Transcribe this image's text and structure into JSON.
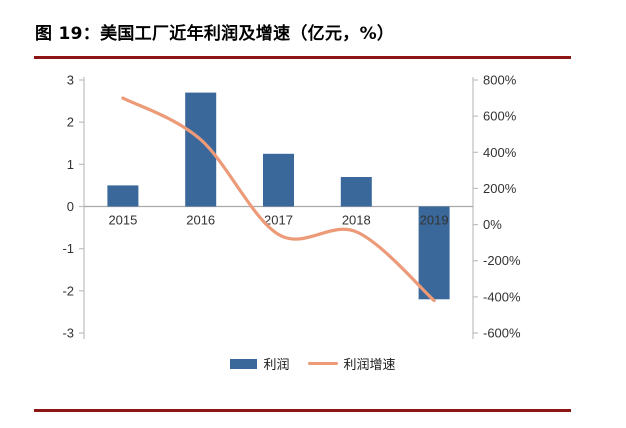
{
  "header": {
    "title": "图 19：美国工厂近年利润及增速（亿元，%）",
    "rule_color": "#8E1515"
  },
  "footer": {
    "rule_color": "#8E1515"
  },
  "chart_data": {
    "type": "bar",
    "subtype": "combo-bar-line-dual-axis",
    "title": "美国工厂近年利润及增速（亿元，%）",
    "categories": [
      "2015",
      "2016",
      "2017",
      "2018",
      "2019"
    ],
    "series": [
      {
        "name": "利润",
        "type": "bar",
        "axis": "left",
        "color": "#3A689B",
        "values": [
          0.5,
          2.7,
          1.25,
          0.7,
          -2.2
        ]
      },
      {
        "name": "利润增速",
        "type": "line",
        "axis": "right",
        "color": "#EC9A78",
        "values": [
          700,
          470,
          -55,
          -40,
          -420
        ]
      }
    ],
    "left_axis": {
      "min": -3,
      "max": 3,
      "ticks": [
        3,
        2,
        1,
        0,
        -1,
        -2,
        -3
      ]
    },
    "right_axis": {
      "min": -600,
      "max": 800,
      "suffix": "%",
      "ticks": [
        800,
        600,
        400,
        200,
        0,
        -200,
        -400,
        -600
      ]
    },
    "legend": {
      "position": "bottom",
      "items": [
        "利润",
        "利润增速"
      ]
    },
    "grid": false,
    "axis_color": "#BFBFBF",
    "zero_line_color": "#A9A9A9",
    "label_color": "#333333",
    "category_label_color": "#111111"
  }
}
